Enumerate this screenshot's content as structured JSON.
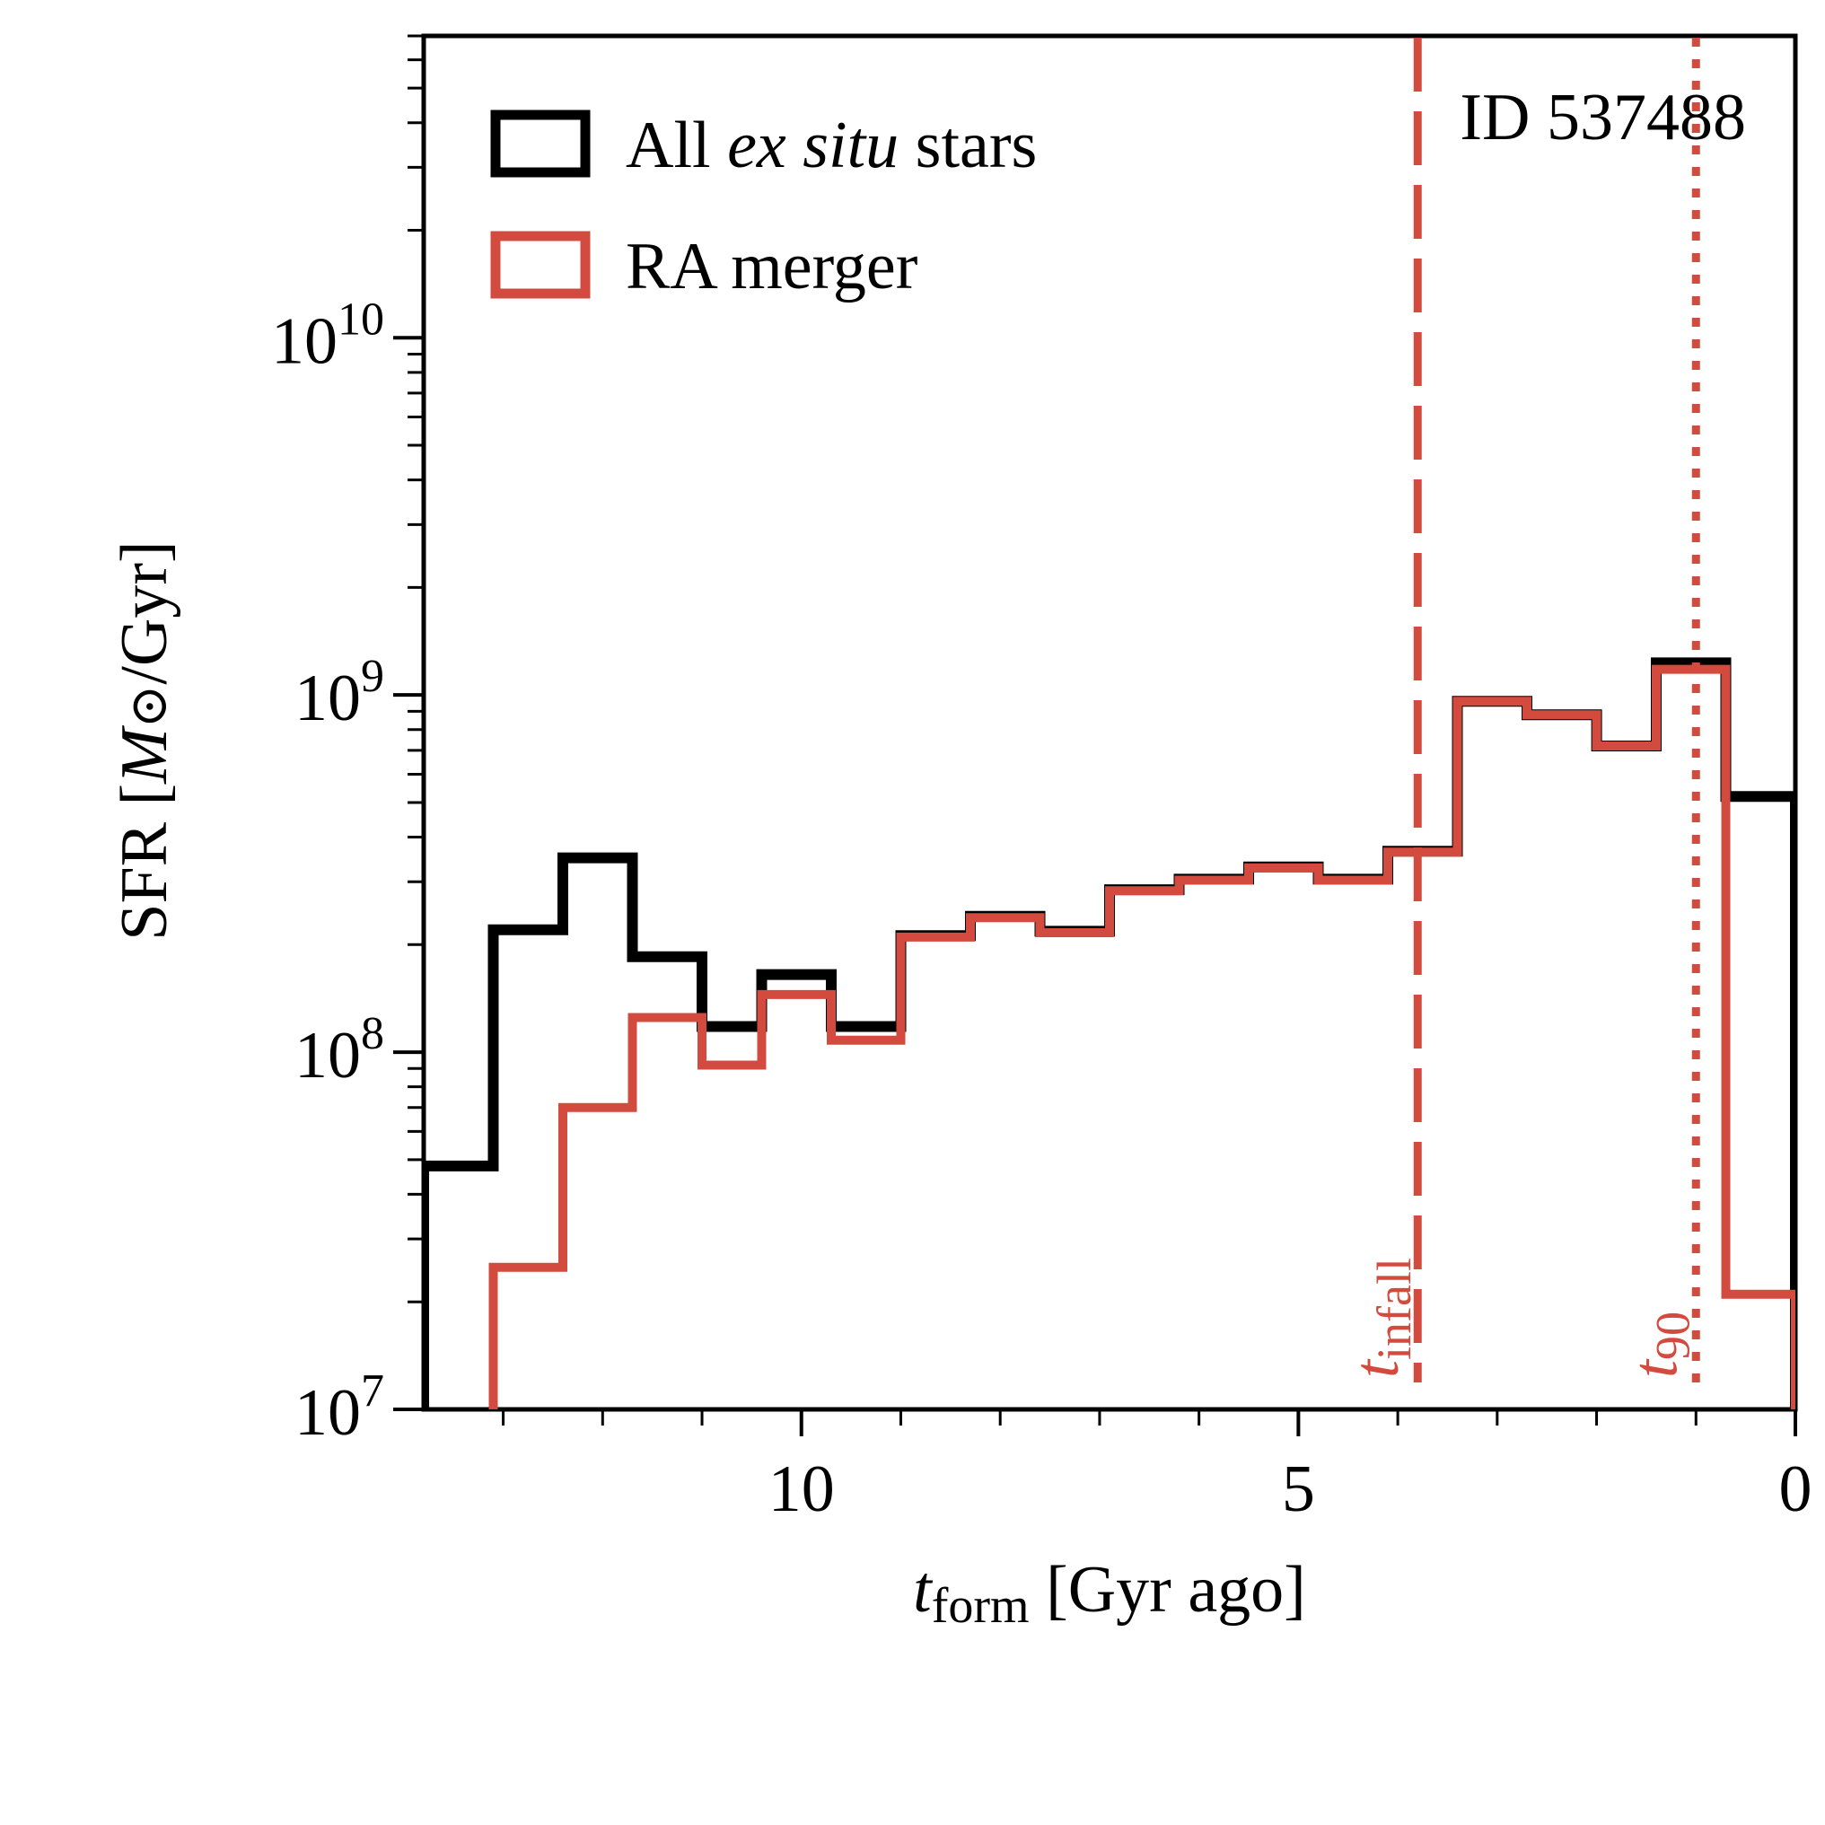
{
  "chart_data": {
    "type": "step-histogram",
    "annotation": "ID 537488",
    "xlabel": {
      "var": "t",
      "sub": "form",
      "rest": " [Gyr ago]"
    },
    "ylabel": {
      "pre": "SFR [",
      "var": "M",
      "sym": "⊙",
      "post": "/Gyr]"
    },
    "xlim": [
      13.8,
      0
    ],
    "ylim": [
      10000000,
      70000000000
    ],
    "yscale": "log",
    "x_ticks": [
      10,
      5,
      0
    ],
    "x_tick_labels": [
      "10",
      "5",
      "0"
    ],
    "x_minor_ticks": [
      13,
      12,
      11,
      9,
      8,
      7,
      6,
      4,
      3,
      2,
      1
    ],
    "y_ticks": [
      {
        "value": 10000000,
        "base": "10",
        "exp": "7"
      },
      {
        "value": 100000000,
        "base": "10",
        "exp": "8"
      },
      {
        "value": 1000000000,
        "base": "10",
        "exp": "9"
      },
      {
        "value": 10000000000,
        "base": "10",
        "exp": "10"
      }
    ],
    "bin_edges": [
      13.8,
      13.1,
      12.4,
      11.7,
      11.0,
      10.4,
      9.7,
      9.0,
      8.3,
      7.6,
      6.9,
      6.2,
      5.5,
      4.8,
      4.1,
      3.4,
      2.7,
      2.0,
      1.4,
      0.7,
      0.0
    ],
    "series": [
      {
        "name": "All ex situ stars",
        "legend_parts": [
          "All ",
          "ex situ",
          " stars"
        ],
        "color": "#000000",
        "values": [
          48000000,
          220000000,
          350000000,
          185000000,
          118000000,
          165000000,
          118000000,
          212000000,
          240000000,
          218000000,
          285000000,
          305000000,
          330000000,
          305000000,
          365000000,
          960000000,
          880000000,
          720000000,
          1230000000,
          520000000
        ]
      },
      {
        "name": "RA merger",
        "legend_parts": [
          "RA merger"
        ],
        "color": "#d34b3f",
        "values": [
          null,
          25000000,
          70000000,
          125000000,
          92000000,
          145000000,
          108000000,
          210000000,
          238000000,
          216000000,
          283000000,
          303000000,
          328000000,
          303000000,
          363000000,
          960000000,
          880000000,
          720000000,
          1180000000,
          21000000
        ]
      }
    ],
    "vlines": [
      {
        "x": 3.8,
        "style": "dashed",
        "label_var": "t",
        "label_sub": "infall",
        "color": "#d34b3f"
      },
      {
        "x": 1.0,
        "style": "dotted",
        "label_var": "t",
        "label_sub": "90",
        "color": "#d34b3f"
      }
    ]
  }
}
